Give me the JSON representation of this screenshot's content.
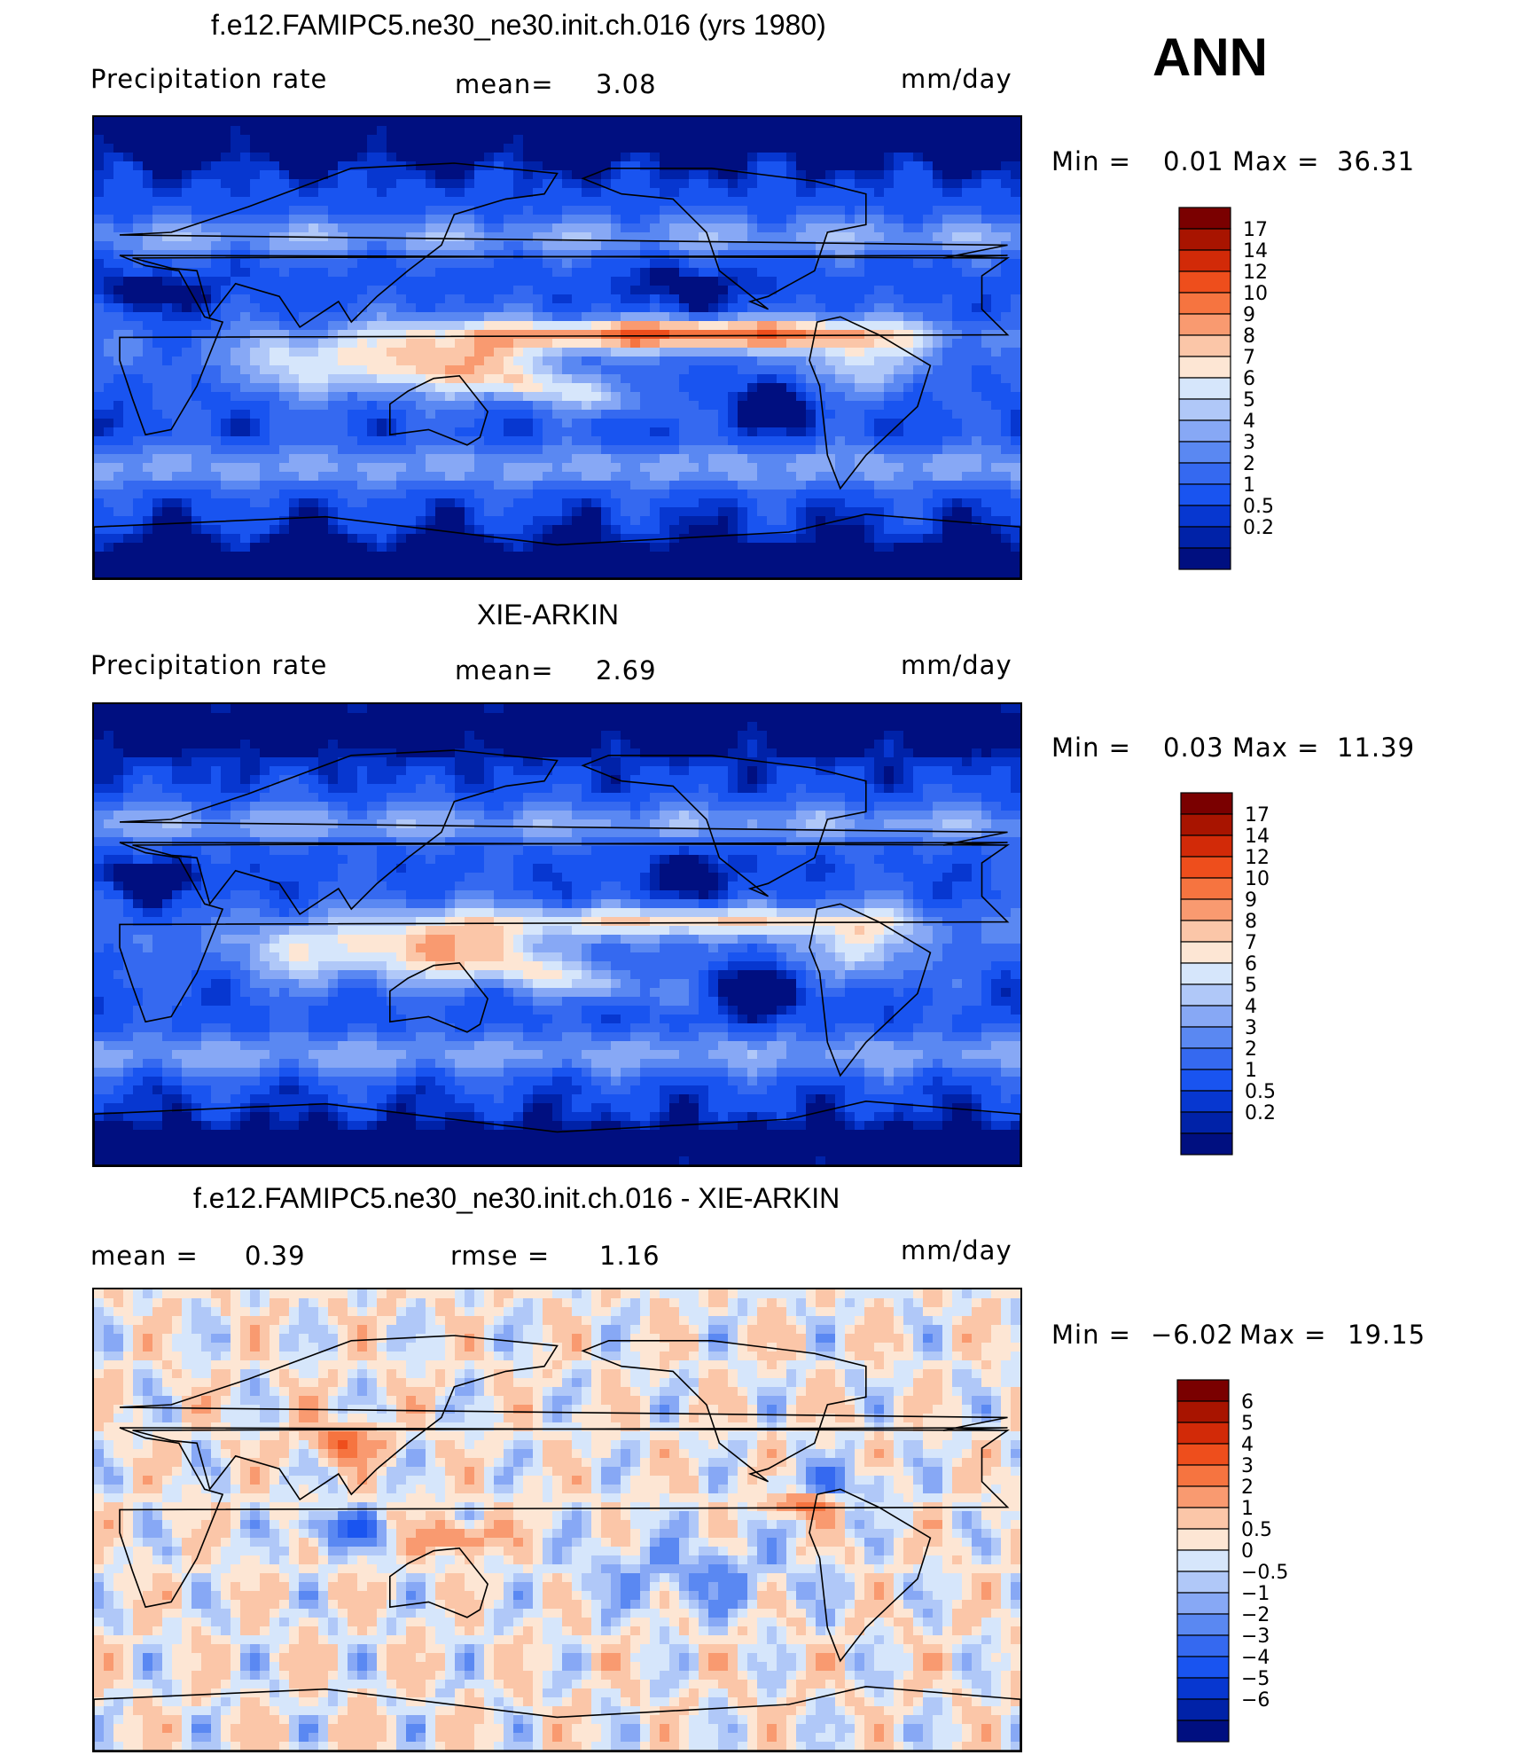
{
  "season": "ANN",
  "colors": {
    "precip_scale": [
      "#000f80",
      "#0022a8",
      "#0737d0",
      "#1954f0",
      "#3569f0",
      "#5a88f2",
      "#87a8f5",
      "#b0c8f8",
      "#d6e6fb",
      "#fde6d4",
      "#fbc6a8",
      "#f99a70",
      "#f67440",
      "#ee4e1c",
      "#d22a08",
      "#a81400",
      "#7a0000"
    ],
    "diff_scale": [
      "#000f80",
      "#0022a8",
      "#0737d0",
      "#1954f0",
      "#3569f0",
      "#5a88f2",
      "#87a8f5",
      "#b0c8f8",
      "#d6e6fb",
      "#fde6d4",
      "#fbc6a8",
      "#f99a70",
      "#f67440",
      "#ee4e1c",
      "#d22a08",
      "#a81400",
      "#7a0000"
    ],
    "coast": "#000000"
  },
  "panels": [
    {
      "title": "f.e12.FAMIPC5.ne30_ne30.init.ch.016 (yrs 1980)",
      "left_label": "Precipitation  rate",
      "center_label": "mean=",
      "center_value": "3.08",
      "right_label": "mm/day",
      "min_label": "Min  =",
      "min_value": "0.01",
      "max_label": "Max  =",
      "max_value": "36.31"
    },
    {
      "title": "XIE-ARKIN",
      "left_label": "Precipitation  rate",
      "center_label": "mean=",
      "center_value": "2.69",
      "right_label": "mm/day",
      "min_label": "Min  =",
      "min_value": "0.03",
      "max_label": "Max  =",
      "max_value": "11.39"
    },
    {
      "title": "f.e12.FAMIPC5.ne30_ne30.init.ch.016 - XIE-ARKIN",
      "left_label": "mean  =",
      "left_value": "0.39",
      "center_label": "rmse  =",
      "center_value": "1.16",
      "right_label": "mm/day",
      "min_label": "Min  =",
      "min_value": "−6.02",
      "max_label": "Max  =",
      "max_value": "19.15"
    }
  ],
  "chart_data": [
    {
      "type": "heatmap",
      "title": "f.e12.FAMIPC5.ne30_ne30.init.ch.016 (yrs 1980)",
      "variable": "Precipitation rate",
      "units": "mm/day",
      "mean": 3.08,
      "min": 0.01,
      "max": 36.31,
      "projection": "global cylindrical equidistant, Pacific-centered",
      "colorbar_levels": [
        "0.2",
        "0.5",
        "1",
        "2",
        "3",
        "4",
        "5",
        "6",
        "7",
        "8",
        "9",
        "10",
        "12",
        "14",
        "17"
      ]
    },
    {
      "type": "heatmap",
      "title": "XIE-ARKIN",
      "variable": "Precipitation rate",
      "units": "mm/day",
      "mean": 2.69,
      "min": 0.03,
      "max": 11.39,
      "projection": "global cylindrical equidistant, Pacific-centered",
      "colorbar_levels": [
        "0.2",
        "0.5",
        "1",
        "2",
        "3",
        "4",
        "5",
        "6",
        "7",
        "8",
        "9",
        "10",
        "12",
        "14",
        "17"
      ]
    },
    {
      "type": "heatmap",
      "title": "f.e12.FAMIPC5.ne30_ne30.init.ch.016 - XIE-ARKIN",
      "variable": "Precipitation rate difference",
      "units": "mm/day",
      "mean": 0.39,
      "rmse": 1.16,
      "min": -6.02,
      "max": 19.15,
      "projection": "global cylindrical equidistant, Pacific-centered",
      "colorbar_levels": [
        "−6",
        "−5",
        "−4",
        "−3",
        "−2",
        "−1",
        "−0.5",
        "0",
        "0.5",
        "1",
        "2",
        "3",
        "4",
        "5",
        "6"
      ]
    }
  ]
}
